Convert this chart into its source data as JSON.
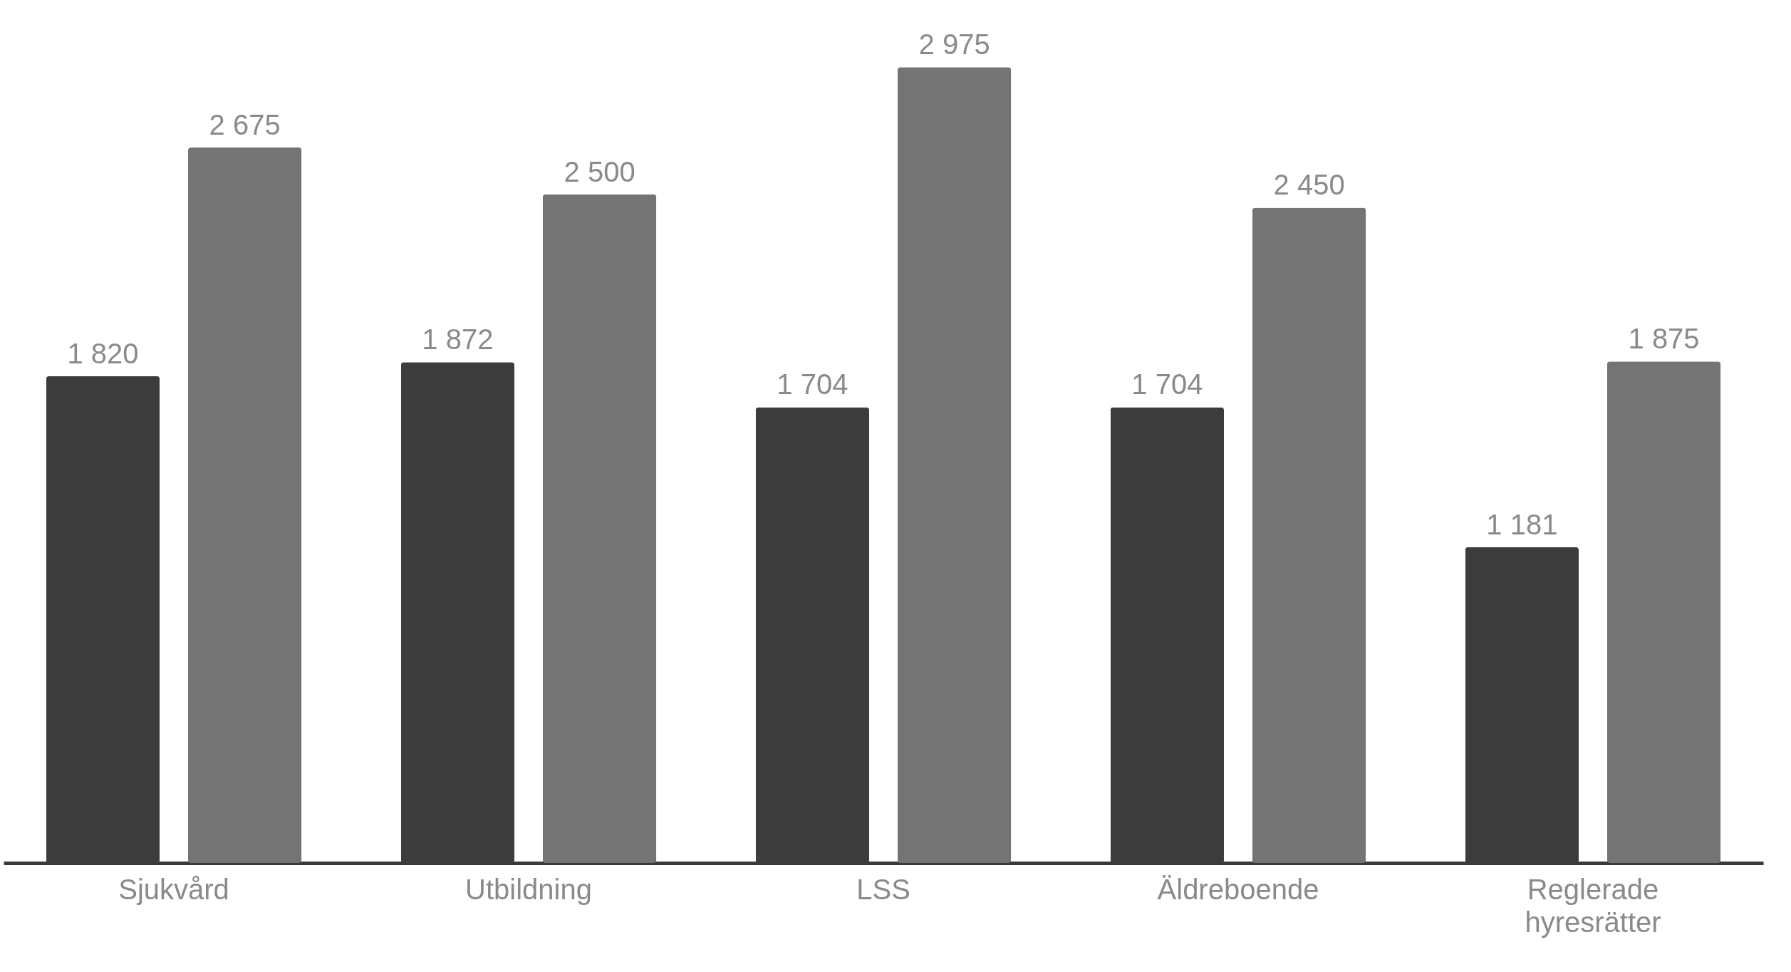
{
  "chart_data": {
    "type": "bar",
    "categories": [
      "Sjukvård",
      "Utbildning",
      "LSS",
      "Äldreboende",
      "Reglerade hyresrätter"
    ],
    "series": [
      {
        "color": "#3c3c3c",
        "values": [
          1820,
          1872,
          1704,
          1704,
          1181
        ],
        "value_labels": [
          "1 820",
          "1 872",
          "1 704",
          "1 704",
          "1 181"
        ]
      },
      {
        "color": "#747474",
        "values": [
          2675,
          2500,
          2975,
          2450,
          1875
        ],
        "value_labels": [
          "2 675",
          "2 500",
          "2 975",
          "2 450",
          "1 875"
        ]
      }
    ],
    "grid": false,
    "legend": false
  }
}
